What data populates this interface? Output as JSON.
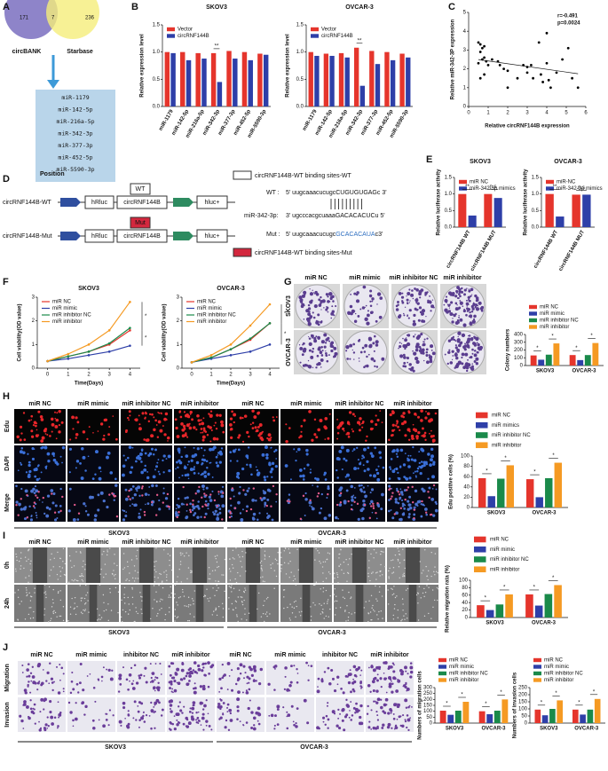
{
  "panel_labels": [
    "A",
    "B",
    "C",
    "D",
    "E",
    "F",
    "G",
    "H",
    "I",
    "J"
  ],
  "panel_a": {
    "sets": [
      "circBANK",
      "Starbase"
    ],
    "counts": [
      "171",
      "7",
      "236"
    ],
    "mirnas": [
      "miR-1179",
      "miR-142-5p",
      "miR-216a-5p",
      "miR-342-3p",
      "miR-377-3p",
      "miR-452-5p",
      "miR-5590-3p"
    ]
  },
  "panel_d": {
    "title": "Position",
    "constructs": [
      "circRNF144B-WT",
      "circRNF144B-Mut"
    ],
    "hrluc": "hRluc",
    "insert": "circRNF144B",
    "hluc": "hluc+",
    "wt_tag": "WT",
    "mut_tag": "Mut",
    "legend_wt": "circRNF144B-WT binding sites-WT",
    "legend_mut": "circRNF144B-WT binding sites-Mut",
    "wt_label": "WT :",
    "wt_seq": "5' uugcaaacucugcCUGUGUGAGc 3'",
    "mir_label": "miR-342-3p:",
    "mir_seq": "3' ugcccacgcuaaaGACACACUCu 5'",
    "mut_label": "Mut :",
    "mut_seq": [
      "5' uugcaaacucugc",
      "GCACACAUA",
      "c3'"
    ]
  },
  "panel_g": {
    "columns": [
      "miR NC",
      "miR mimic",
      "miR inhibitor NC",
      "miR inhibitor"
    ],
    "rows": [
      "SKOV3",
      "OVCAR-3"
    ]
  },
  "panel_h": {
    "columns": [
      "miR NC",
      "miR mimic",
      "miR inhibitor NC",
      "miR inhibitor",
      "miR NC",
      "miR mimic",
      "miR inhibitor NC",
      "miR inhibitor"
    ],
    "rows": [
      "Edu",
      "DAPI",
      "Merge"
    ],
    "groups": [
      "SKOV3",
      "OVCAR-3"
    ]
  },
  "panel_i": {
    "columns": [
      "miR NC",
      "miR mimic",
      "miR inhibitor NC",
      "miR inhibitor",
      "miR NC",
      "miR mimic",
      "miR inhibitor NC",
      "miR inhibitor"
    ],
    "rows": [
      "0h",
      "24h"
    ],
    "groups": [
      "SKOV3",
      "OVCAR-3"
    ]
  },
  "panel_j": {
    "columns": [
      "miR NC",
      "miR mimic",
      "inhibitor NC",
      "miR inhibitor",
      "miR NC",
      "miR mimic",
      "inhibitor NC",
      "miR inhibitor"
    ],
    "rows": [
      "Migration",
      "Invasion"
    ],
    "groups": [
      "SKOV3",
      "OVCAR-3"
    ]
  },
  "chart_data": [
    {
      "type": "bar",
      "title": "SKOV3",
      "y_label": "Relative expression level",
      "categories": [
        "miR-1179",
        "miR-142-5p",
        "miR-216a-5p",
        "miR-342-3p",
        "miR-377-3p",
        "miR-452-5p",
        "miR-5590-3p"
      ],
      "series": [
        {
          "name": "Vector",
          "color": "#e5352c",
          "values": [
            1.0,
            1.0,
            0.98,
            0.98,
            1.02,
            1.0,
            0.97
          ]
        },
        {
          "name": "circRNF144B",
          "color": "#2e3fa8",
          "values": [
            0.98,
            0.85,
            0.88,
            0.45,
            0.88,
            0.85,
            0.95
          ]
        }
      ],
      "ylim": [
        0,
        1.5
      ],
      "yticks": [
        {
          "value": 0,
          "label": "0.0"
        },
        0.5,
        {
          "value": 1,
          "label": "1.0"
        },
        1.5
      ],
      "legend": "top-left",
      "annotations": [
        "**"
      ]
    },
    {
      "type": "bar",
      "title": "OVCAR-3",
      "y_label": "Relative expression level",
      "categories": [
        "miR-1179",
        "miR-142-5p",
        "miR-216a-5p",
        "miR-342-3p",
        "miR-377-3p",
        "miR-452-5p",
        "miR-5590-3p"
      ],
      "series": [
        {
          "name": "Vector",
          "color": "#e5352c",
          "values": [
            1.0,
            0.97,
            0.98,
            1.08,
            1.02,
            1.0,
            0.97
          ]
        },
        {
          "name": "circRNF144B",
          "color": "#2e3fa8",
          "values": [
            0.93,
            0.93,
            0.9,
            0.38,
            0.78,
            0.85,
            0.9
          ]
        }
      ],
      "ylim": [
        0,
        1.5
      ],
      "yticks": [
        {
          "value": 0,
          "label": "0.0"
        },
        0.5,
        {
          "value": 1,
          "label": "1.0"
        },
        1.5
      ],
      "legend": "top-left",
      "annotations": [
        "**"
      ]
    },
    {
      "type": "scatter",
      "x_label": "Relative circRNF144B expression",
      "y_label": "Relative miR-342-3P expression",
      "color": "#000000",
      "x": [
        0.5,
        0.6,
        0.7,
        0.8,
        0.6,
        0.7,
        0.5,
        0.8,
        0.9,
        0.6,
        0.8,
        1,
        1.2,
        1.5,
        1.6,
        1.8,
        2,
        2,
        2.5,
        2.8,
        3,
        3,
        3.2,
        3.3,
        3.6,
        3.7,
        3.8,
        4,
        4.1,
        4.2,
        4.5,
        4.8,
        5.1,
        5.3,
        5.6,
        4
      ],
      "values": [
        3.4,
        3.3,
        3.1,
        3.2,
        2.9,
        2.5,
        2.3,
        2.6,
        2.4,
        1.5,
        1.7,
        2.2,
        2.5,
        2.4,
        2.2,
        2.0,
        1.9,
        1.0,
        1.5,
        2.2,
        2.1,
        1.8,
        2.2,
        1.5,
        3.4,
        1.7,
        1.3,
        2.3,
        1.4,
        1.0,
        1.8,
        2.5,
        3.1,
        1.5,
        1.0,
        3.9
      ],
      "xlim": [
        0,
        6
      ],
      "xticks": [
        0,
        1,
        2,
        3,
        4,
        5,
        6
      ],
      "ylim": [
        0,
        5
      ],
      "yticks": [
        0,
        1,
        2,
        3,
        4,
        5
      ],
      "annotations": [
        "r=-0.491",
        "p=0.0024"
      ]
    },
    {
      "type": "bar",
      "title": "SKOV3",
      "y_label": "Relative luciferase activity",
      "categories": [
        "circRNF144B WT",
        "circRNF144B MUT"
      ],
      "series": [
        {
          "name": "miR NC",
          "color": "#e5352c",
          "values": [
            1.0,
            1.0
          ]
        },
        {
          "name": "miR-342-3p mimics",
          "color": "#2e3fa8",
          "values": [
            0.35,
            0.88
          ]
        }
      ],
      "ylim": [
        0,
        1.5
      ],
      "yticks": [
        {
          "value": 0,
          "label": "0.0"
        },
        0.5,
        {
          "value": 1,
          "label": "1.0"
        },
        1.5
      ],
      "legend": "top-left",
      "annotations": [
        "**",
        "n.s"
      ]
    },
    {
      "type": "bar",
      "title": "OVCAR-3",
      "y_label": "Relative luciferase activity",
      "categories": [
        "circRNF144B WT",
        "circRNF144B MUT"
      ],
      "series": [
        {
          "name": "miR-NC",
          "color": "#e5352c",
          "values": [
            1.0,
            0.98
          ]
        },
        {
          "name": "miR-342-3p mimics",
          "color": "#2e3fa8",
          "values": [
            0.32,
            0.98
          ]
        }
      ],
      "ylim": [
        0,
        1.5
      ],
      "yticks": [
        {
          "value": 0,
          "label": "0.0"
        },
        0.5,
        {
          "value": 1,
          "label": "1.0"
        },
        1.5
      ],
      "legend": "top-left",
      "annotations": [
        "**",
        "n.s"
      ]
    },
    {
      "type": "line",
      "title": "SKOV3",
      "x_label": "Time(Days)",
      "y_label": "Cell viability(OD value)",
      "x": [
        0,
        1,
        2,
        3,
        4
      ],
      "xlim": [
        -0.5,
        4.5
      ],
      "xticks": [
        0,
        1,
        2,
        3,
        4
      ],
      "ylim": [
        0,
        3
      ],
      "yticks": [
        0,
        1,
        2,
        3
      ],
      "series": [
        {
          "name": "miR NC",
          "color": "#e5352c",
          "values": [
            0.3,
            0.5,
            0.7,
            1.0,
            1.6
          ]
        },
        {
          "name": "miR mimic",
          "color": "#2e3fa8",
          "values": [
            0.3,
            0.4,
            0.55,
            0.7,
            0.95
          ]
        },
        {
          "name": "miR inhibitor NC",
          "color": "#1a8a4a",
          "values": [
            0.3,
            0.5,
            0.7,
            1.05,
            1.7
          ]
        },
        {
          "name": "miR inhibitor",
          "color": "#f59a23",
          "values": [
            0.3,
            0.6,
            1.0,
            1.6,
            2.8
          ]
        }
      ],
      "legend": "top-left",
      "annotations": [
        "*",
        "*"
      ]
    },
    {
      "type": "line",
      "title": "OVCAR-3",
      "x_label": "Time(Days)",
      "y_label": "Cell viability(OD value)",
      "x": [
        0,
        1,
        2,
        3,
        4
      ],
      "xlim": [
        -0.5,
        4.5
      ],
      "xticks": [
        0,
        1,
        2,
        3,
        4
      ],
      "ylim": [
        0,
        3
      ],
      "yticks": [
        0,
        1,
        2,
        3
      ],
      "series": [
        {
          "name": "miR NC",
          "color": "#e5352c",
          "values": [
            0.25,
            0.45,
            0.8,
            1.2,
            1.9
          ]
        },
        {
          "name": "miR mimic",
          "color": "#2e3fa8",
          "values": [
            0.25,
            0.4,
            0.55,
            0.7,
            1.0
          ]
        },
        {
          "name": "miR inhibitor NC",
          "color": "#1a8a4a",
          "values": [
            0.25,
            0.45,
            0.8,
            1.25,
            1.9
          ]
        },
        {
          "name": "miR inhibitor",
          "color": "#f59a23",
          "values": [
            0.25,
            0.55,
            1.0,
            1.8,
            2.7
          ]
        }
      ],
      "legend": "top-left",
      "annotations": [
        "*",
        "*"
      ]
    },
    {
      "type": "bar",
      "y_label": "Colony numbers",
      "categories": [
        "SKOV3",
        "OVCAR-3"
      ],
      "series": [
        {
          "name": "miR NC",
          "color": "#e5352c",
          "values": [
            130,
            135
          ]
        },
        {
          "name": "miR mimic",
          "color": "#2e3fa8",
          "values": [
            75,
            70
          ]
        },
        {
          "name": "miR inhibitor NC",
          "color": "#1a8a4a",
          "values": [
            140,
            135
          ]
        },
        {
          "name": "miR inhibitor",
          "color": "#f59a23",
          "values": [
            285,
            290
          ]
        }
      ],
      "ylim": [
        0,
        400
      ],
      "yticks": [
        0,
        100,
        200,
        300,
        400
      ],
      "legend": "top",
      "annotations": [
        "*",
        "*",
        "*",
        "*"
      ]
    },
    {
      "type": "bar",
      "y_label": "Edu positive cells (%)",
      "categories": [
        "SKOV3",
        "OVCAR-3"
      ],
      "series": [
        {
          "name": "miR NC",
          "color": "#e5352c",
          "values": [
            57,
            55
          ]
        },
        {
          "name": "miR mimics",
          "color": "#2e3fa8",
          "values": [
            22,
            20
          ]
        },
        {
          "name": "miR inhibitor NC",
          "color": "#1a8a4a",
          "values": [
            56,
            57
          ]
        },
        {
          "name": "miR inhibitor",
          "color": "#f59a23",
          "values": [
            82,
            87
          ]
        }
      ],
      "ylim": [
        0,
        100
      ],
      "yticks": [
        0,
        20,
        40,
        60,
        80,
        100
      ],
      "legend": "top",
      "annotations": [
        "*",
        "*",
        "*",
        "*"
      ]
    },
    {
      "type": "bar",
      "y_label": "Relative migration rata (%)",
      "categories": [
        "SKOV3",
        "OVCAR-3"
      ],
      "series": [
        {
          "name": "miR NC",
          "color": "#e5352c",
          "values": [
            33,
            62
          ]
        },
        {
          "name": "miR mimic",
          "color": "#2e3fa8",
          "values": [
            20,
            32
          ]
        },
        {
          "name": "miR inhibitor NC",
          "color": "#1a8a4a",
          "values": [
            35,
            63
          ]
        },
        {
          "name": "miR inhibitor",
          "color": "#f59a23",
          "values": [
            62,
            87
          ]
        }
      ],
      "ylim": [
        0,
        100
      ],
      "yticks": [
        0,
        20,
        40,
        60,
        80,
        100
      ],
      "legend": "top",
      "annotations": [
        "*",
        "*",
        "*",
        "*"
      ]
    },
    {
      "type": "bar",
      "y_label": "Numbers of migration cells",
      "categories": [
        "SKOV3",
        "OVCAR-3"
      ],
      "series": [
        {
          "name": "miR NC",
          "color": "#e5352c",
          "values": [
            105,
            100
          ]
        },
        {
          "name": "miR mimic",
          "color": "#2e3fa8",
          "values": [
            70,
            75
          ]
        },
        {
          "name": "miR inhibitor NC",
          "color": "#1a8a4a",
          "values": [
            105,
            105
          ]
        },
        {
          "name": "miR inhibitor",
          "color": "#f59a23",
          "values": [
            180,
            200
          ]
        }
      ],
      "ylim": [
        0,
        300
      ],
      "yticks": [
        0,
        50,
        100,
        150,
        200,
        250,
        300
      ],
      "legend": "top",
      "annotations": [
        "*",
        "*",
        "*",
        "*"
      ]
    },
    {
      "type": "bar",
      "y_label": "Numbers of invasion cells",
      "categories": [
        "SKOV3",
        "OVCAR-3"
      ],
      "series": [
        {
          "name": "miR NC",
          "color": "#e5352c",
          "values": [
            95,
            95
          ]
        },
        {
          "name": "miR mimic",
          "color": "#2e3fa8",
          "values": [
            55,
            60
          ]
        },
        {
          "name": "miR inhibitor NC",
          "color": "#1a8a4a",
          "values": [
            100,
            95
          ]
        },
        {
          "name": "miR inhibitor",
          "color": "#f59a23",
          "values": [
            160,
            170
          ]
        }
      ],
      "ylim": [
        0,
        250
      ],
      "yticks": [
        0,
        50,
        100,
        150,
        200,
        250
      ],
      "legend": "top",
      "annotations": [
        "*",
        "*",
        "*",
        "*"
      ]
    }
  ]
}
